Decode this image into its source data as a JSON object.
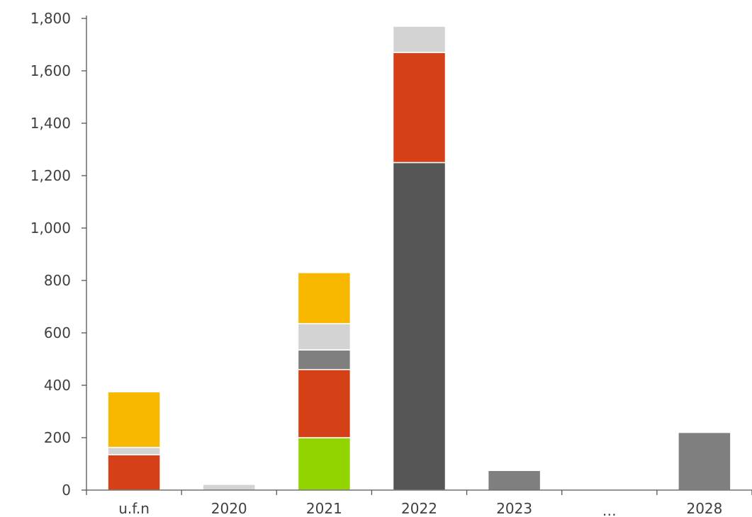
{
  "chart_data": {
    "type": "bar",
    "stacked": true,
    "categories": [
      "u.f.n",
      "2020",
      "2021",
      "2022",
      "2023",
      "...",
      "2028"
    ],
    "ylim": [
      0,
      1800
    ],
    "yticks": [
      0,
      200,
      400,
      600,
      800,
      1000,
      1200,
      1400,
      1600,
      1800
    ],
    "ytick_labels": [
      "0",
      "200",
      "400",
      "600",
      "800",
      "1,000",
      "1,200",
      "1,400",
      "1,600",
      "1,800"
    ],
    "grid": false,
    "legend": "none",
    "series": [
      {
        "color": "#92d400",
        "values": [
          0,
          0,
          200,
          0,
          0,
          0,
          0
        ]
      },
      {
        "color": "#555555",
        "values": [
          0,
          0,
          0,
          1250,
          0,
          0,
          0
        ]
      },
      {
        "color": "#d64016",
        "values": [
          135,
          0,
          260,
          420,
          0,
          0,
          0
        ]
      },
      {
        "color": "#7f7f7f",
        "values": [
          0,
          0,
          75,
          0,
          75,
          0,
          220
        ]
      },
      {
        "color": "#d3d3d3",
        "values": [
          28,
          22,
          100,
          100,
          0,
          0,
          0
        ]
      },
      {
        "color": "#f9b800",
        "values": [
          212,
          0,
          195,
          0,
          0,
          0,
          0
        ]
      }
    ]
  }
}
